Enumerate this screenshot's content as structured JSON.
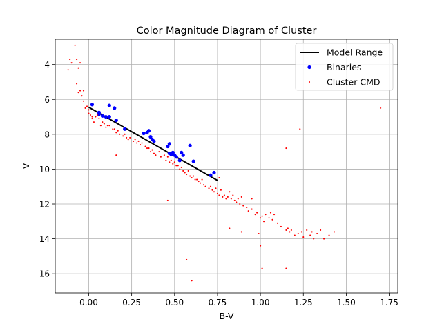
{
  "chart_data": {
    "type": "scatter",
    "title": "Color Magnitude Diagram of Cluster",
    "xlabel": "B-V",
    "ylabel": "V",
    "xlim": [
      -0.195,
      1.8
    ],
    "ylim": [
      17.1,
      2.55
    ],
    "y_inverted": true,
    "x_ticks": [
      0.0,
      0.25,
      0.5,
      0.75,
      1.0,
      1.25,
      1.5,
      1.75
    ],
    "x_tick_labels": [
      "0.00",
      "0.25",
      "0.50",
      "0.75",
      "1.00",
      "1.25",
      "1.50",
      "1.75"
    ],
    "y_ticks": [
      4,
      6,
      8,
      10,
      12,
      14,
      16
    ],
    "y_tick_labels": [
      "4",
      "6",
      "8",
      "10",
      "12",
      "14",
      "16"
    ],
    "grid": true,
    "legend_position": "top-right",
    "series": [
      {
        "name": "Model Range",
        "kind": "line",
        "color": "#000000",
        "x": [
          0.0,
          0.75
        ],
        "y": [
          6.45,
          10.65
        ]
      },
      {
        "name": "Binaries",
        "kind": "scatter",
        "color": "#0000ff",
        "marker_size": "large",
        "x": [
          0.02,
          0.06,
          0.06,
          0.08,
          0.1,
          0.12,
          0.12,
          0.15,
          0.16,
          0.21,
          0.32,
          0.34,
          0.35,
          0.36,
          0.37,
          0.38,
          0.46,
          0.47,
          0.47,
          0.48,
          0.49,
          0.5,
          0.51,
          0.53,
          0.54,
          0.55,
          0.59,
          0.61,
          0.71,
          0.73
        ],
        "y": [
          6.3,
          6.75,
          6.85,
          6.95,
          7.0,
          6.35,
          7.0,
          6.5,
          7.2,
          7.7,
          7.95,
          7.9,
          7.8,
          8.15,
          8.3,
          8.4,
          8.7,
          8.55,
          9.1,
          9.15,
          9.05,
          9.2,
          9.3,
          9.5,
          9.05,
          9.2,
          8.65,
          9.55,
          10.35,
          10.2
        ]
      },
      {
        "name": "Cluster CMD",
        "kind": "scatter",
        "color": "#ff0000",
        "marker_size": "small",
        "x": [
          -0.12,
          -0.11,
          -0.1,
          -0.08,
          -0.07,
          -0.07,
          -0.06,
          -0.06,
          -0.05,
          -0.05,
          -0.04,
          -0.03,
          -0.03,
          -0.02,
          -0.01,
          0.0,
          0.0,
          0.01,
          0.02,
          0.02,
          0.03,
          0.04,
          0.05,
          0.06,
          0.07,
          0.08,
          0.09,
          0.1,
          0.11,
          0.12,
          0.14,
          0.15,
          0.16,
          0.17,
          0.18,
          0.2,
          0.21,
          0.22,
          0.23,
          0.24,
          0.26,
          0.27,
          0.28,
          0.29,
          0.3,
          0.31,
          0.33,
          0.34,
          0.35,
          0.36,
          0.37,
          0.38,
          0.39,
          0.41,
          0.42,
          0.44,
          0.45,
          0.46,
          0.47,
          0.48,
          0.49,
          0.5,
          0.51,
          0.52,
          0.53,
          0.54,
          0.55,
          0.56,
          0.57,
          0.58,
          0.59,
          0.6,
          0.61,
          0.62,
          0.63,
          0.64,
          0.65,
          0.66,
          0.67,
          0.68,
          0.7,
          0.71,
          0.72,
          0.73,
          0.74,
          0.75,
          0.76,
          0.77,
          0.78,
          0.79,
          0.8,
          0.81,
          0.82,
          0.83,
          0.84,
          0.85,
          0.86,
          0.87,
          0.88,
          0.89,
          0.9,
          0.92,
          0.93,
          0.95,
          0.97,
          0.98,
          1.0,
          1.01,
          1.02,
          1.03,
          1.05,
          1.06,
          1.07,
          1.08,
          1.1,
          1.12,
          1.15,
          1.16,
          1.17,
          1.18,
          1.2,
          1.22,
          1.24,
          1.25,
          1.27,
          1.29,
          1.3,
          1.31,
          1.33,
          1.35,
          1.37,
          1.4,
          1.43,
          0.16,
          0.46,
          0.57,
          0.6,
          0.76,
          0.82,
          0.89,
          0.95,
          0.99,
          1.0,
          1.01,
          1.15,
          1.15,
          1.23,
          1.7
        ],
        "y": [
          4.3,
          3.7,
          3.9,
          2.9,
          5.1,
          3.7,
          4.2,
          5.6,
          3.9,
          5.5,
          5.8,
          6.1,
          5.5,
          6.5,
          6.4,
          6.8,
          6.6,
          6.9,
          7.0,
          7.1,
          7.3,
          7.0,
          6.9,
          7.1,
          7.5,
          7.3,
          7.4,
          7.6,
          7.5,
          7.5,
          7.7,
          7.7,
          7.9,
          7.8,
          8.0,
          8.1,
          8.0,
          8.2,
          8.3,
          8.2,
          8.4,
          8.3,
          8.5,
          8.4,
          8.6,
          8.5,
          8.7,
          8.8,
          8.8,
          9.0,
          8.9,
          9.1,
          9.2,
          9.0,
          9.3,
          9.2,
          9.5,
          9.3,
          9.6,
          9.5,
          9.7,
          9.6,
          9.8,
          9.8,
          10.0,
          9.9,
          10.1,
          10.2,
          10.3,
          10.1,
          10.4,
          10.5,
          10.4,
          10.6,
          10.6,
          10.7,
          10.8,
          10.6,
          10.9,
          11.0,
          11.1,
          11.0,
          11.2,
          11.3,
          11.1,
          11.4,
          11.5,
          11.2,
          11.6,
          11.5,
          11.7,
          11.6,
          11.3,
          11.7,
          11.5,
          11.8,
          11.9,
          11.7,
          12.0,
          11.6,
          12.1,
          12.2,
          12.4,
          12.3,
          12.6,
          12.5,
          12.8,
          12.7,
          13.0,
          12.6,
          12.8,
          12.5,
          12.9,
          12.6,
          13.1,
          13.3,
          13.5,
          13.4,
          13.6,
          13.5,
          13.8,
          13.7,
          13.6,
          13.9,
          13.5,
          13.8,
          13.6,
          14.0,
          13.7,
          13.5,
          14.0,
          13.8,
          13.6,
          9.2,
          11.8,
          15.2,
          16.4,
          10.5,
          13.4,
          13.6,
          11.7,
          13.7,
          14.4,
          15.7,
          8.8,
          15.7,
          7.7,
          6.5
        ]
      }
    ]
  }
}
